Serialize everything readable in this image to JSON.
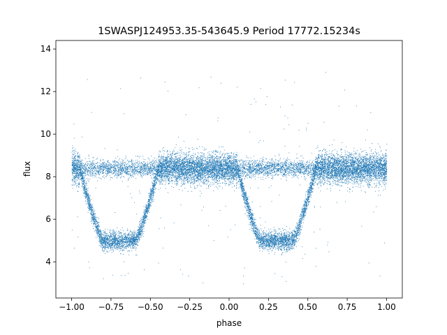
{
  "chart_data": {
    "type": "scatter",
    "title": "1SWASPJ124953.35-543645.9 Period 17772.15234s",
    "xlabel": "phase",
    "ylabel": "flux",
    "xlim": [
      -1.1,
      1.1
    ],
    "ylim": [
      2.3,
      14.4
    ],
    "x_ticks": [
      -1.0,
      -0.75,
      -0.5,
      -0.25,
      0.0,
      0.25,
      0.5,
      0.75,
      1.0
    ],
    "x_tick_labels": [
      "−1.00",
      "−0.75",
      "−0.50",
      "−0.25",
      "0.00",
      "0.25",
      "0.50",
      "0.75",
      "1.00"
    ],
    "y_ticks": [
      4,
      6,
      8,
      10,
      12,
      14
    ],
    "y_tick_labels": [
      "4",
      "6",
      "8",
      "10",
      "12",
      "14"
    ],
    "grid": false,
    "marker_color": "#1f77b4",
    "series": [
      {
        "phase_range": [
          -1.0,
          1.0
        ],
        "baseline_flux": 8.4,
        "baseline_scatter": 0.35,
        "eclipses": [
          {
            "phase_center": -0.7,
            "phase_halfwidth": 0.25,
            "min_flux": 5.0
          },
          {
            "phase_center": 0.3,
            "phase_halfwidth": 0.25,
            "min_flux": 5.0
          }
        ],
        "outlier_flux_range": [
          2.9,
          13.0
        ],
        "approx_points": 16000
      }
    ]
  }
}
